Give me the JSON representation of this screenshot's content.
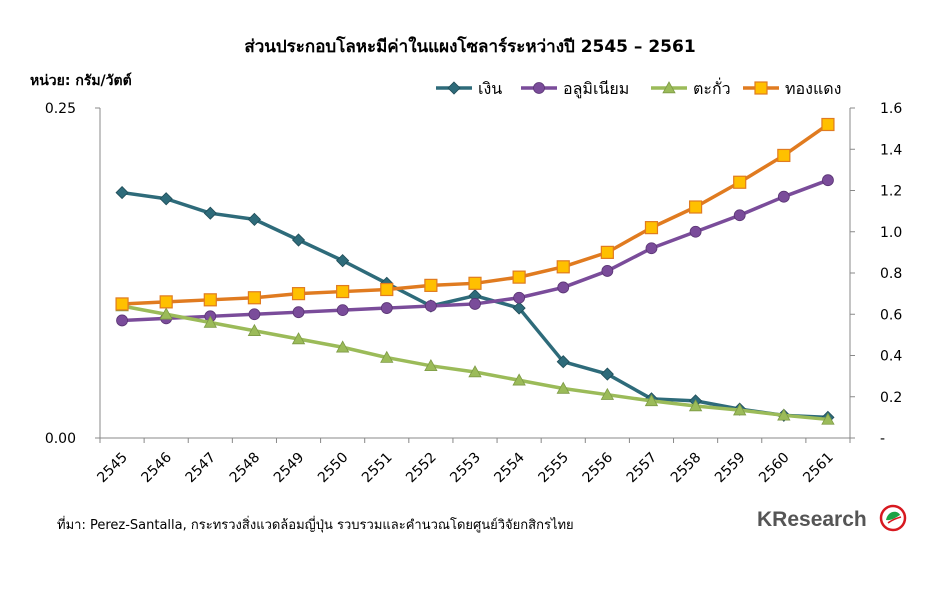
{
  "chart_data": {
    "type": "line",
    "title": "ส่วนประกอบโลหะมีค่าในแผงโซลาร์ระหว่างปี 2545 – 2561",
    "unit_label": "หน่วย: กรัม/วัตต์",
    "categories": [
      "2545",
      "2546",
      "2547",
      "2548",
      "2549",
      "2550",
      "2551",
      "2552",
      "2553",
      "2554",
      "2555",
      "2556",
      "2557",
      "2558",
      "2559",
      "2560",
      "2561"
    ],
    "left_axis": {
      "min": 0,
      "max": 0.25,
      "ticks": [
        "0.00",
        "0.25"
      ]
    },
    "right_axis": {
      "min": 0,
      "max": 1.6,
      "ticks": [
        "-",
        "0.2",
        "0.4",
        "0.6",
        "0.8",
        "1.0",
        "1.2",
        "1.4",
        "1.6"
      ]
    },
    "legend_position": "top-right",
    "grid": false,
    "series": [
      {
        "name": "เงิน",
        "axis": "right",
        "marker": "diamond",
        "color": "#2E6B7A",
        "values": [
          1.19,
          1.16,
          1.09,
          1.06,
          0.96,
          0.86,
          0.75,
          0.64,
          0.69,
          0.63,
          0.37,
          0.31,
          0.19,
          0.18,
          0.14,
          0.11,
          0.1
        ]
      },
      {
        "name": "อลูมิเนียม",
        "axis": "right",
        "marker": "circle",
        "color": "#7A4C9A",
        "values": [
          0.57,
          0.58,
          0.59,
          0.6,
          0.61,
          0.62,
          0.63,
          0.64,
          0.65,
          0.68,
          0.73,
          0.81,
          0.92,
          1.0,
          1.08,
          1.17,
          1.25
        ]
      },
      {
        "name": "ตะกั่ว",
        "axis": "right",
        "marker": "triangle",
        "color": "#9BBB59",
        "values": [
          0.64,
          0.6,
          0.56,
          0.52,
          0.48,
          0.44,
          0.39,
          0.35,
          0.32,
          0.28,
          0.24,
          0.21,
          0.18,
          0.155,
          0.135,
          0.11,
          0.09
        ]
      },
      {
        "name": "ทองแดง",
        "axis": "right",
        "marker": "square",
        "color": "#E07B20",
        "values": [
          0.65,
          0.66,
          0.67,
          0.68,
          0.7,
          0.71,
          0.72,
          0.74,
          0.75,
          0.78,
          0.83,
          0.9,
          1.02,
          1.12,
          1.24,
          1.37,
          1.52
        ]
      }
    ]
  },
  "source_text": "ที่มา: Perez-Santalla, กระทรวงสิ่งแวดล้อมญี่ปุ่น รวบรวมและคำนวณโดยศูนย์วิจัยกสิกรไทย",
  "brand": "KResearch",
  "brand_colors": {
    "logo_green": "#1BA345",
    "logo_red": "#D71920"
  }
}
